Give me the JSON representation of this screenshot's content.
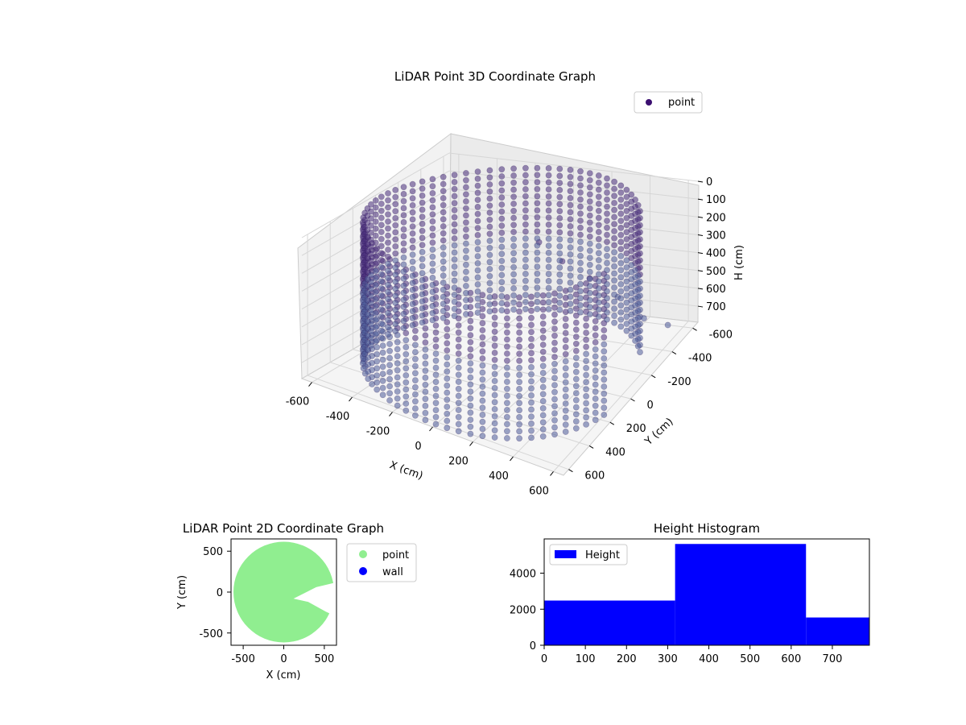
{
  "chart_data": [
    {
      "type": "scatter3d",
      "title": "LiDAR Point 3D Coordinate Graph",
      "xlabel": "X (cm)",
      "ylabel": "Y (cm)",
      "zlabel": "H (cm)",
      "xlim": [
        -650,
        650
      ],
      "ylim": [
        -650,
        650
      ],
      "zlim": [
        0,
        790
      ],
      "z_inverted": true,
      "xticks": [
        -600,
        -400,
        -200,
        0,
        200,
        400,
        600
      ],
      "yticks": [
        -600,
        -400,
        -200,
        0,
        200,
        400,
        600
      ],
      "zticks": [
        0,
        100,
        200,
        300,
        400,
        500,
        600,
        700
      ],
      "legend": [
        "point"
      ],
      "legend_position": "top-right",
      "grid": true,
      "series": [
        {
          "name": "point",
          "color": "#3b0f70",
          "shape": "cylinder wall",
          "radius": 620,
          "height_range": [
            0,
            790
          ],
          "open_sector_deg": [
            -35,
            15
          ],
          "extra_points": [
            {
              "x": 150,
              "y": -60,
              "h": 80
            },
            {
              "x": 220,
              "y": -150,
              "h": 220
            },
            {
              "x": 300,
              "y": -260,
              "h": 360
            },
            {
              "x": 380,
              "y": -380,
              "h": 520
            },
            {
              "x": 450,
              "y": -500,
              "h": 700
            },
            {
              "x": 520,
              "y": -600,
              "h": 790
            }
          ]
        }
      ]
    },
    {
      "type": "scatter",
      "title": "LiDAR Point 2D Coordinate Graph",
      "xlabel": "X (cm)",
      "ylabel": "Y (cm)",
      "xlim": [
        -650,
        650
      ],
      "ylim": [
        -650,
        650
      ],
      "xticks": [
        -500,
        0,
        500
      ],
      "yticks": [
        -500,
        0,
        500
      ],
      "legend": [
        "point",
        "wall"
      ],
      "legend_position": "outside-right",
      "series": [
        {
          "name": "point",
          "color": "#90ee90",
          "shape": "filled disc",
          "radius": 620
        },
        {
          "name": "wall",
          "color": "#0000ff"
        }
      ]
    },
    {
      "type": "bar",
      "title": "Height Histogram",
      "xlim": [
        0,
        790
      ],
      "ylim": [
        0,
        5900
      ],
      "xticks": [
        0,
        100,
        200,
        300,
        400,
        500,
        600,
        700
      ],
      "yticks": [
        0,
        2000,
        4000
      ],
      "legend": [
        "Height"
      ],
      "legend_position": "top-left",
      "series": [
        {
          "name": "Height",
          "color": "#0000ff"
        }
      ],
      "bins": [
        {
          "start": 0,
          "end": 318,
          "count": 2480
        },
        {
          "start": 318,
          "end": 636,
          "count": 5620
        },
        {
          "start": 636,
          "end": 790,
          "count": 1540
        }
      ]
    }
  ]
}
